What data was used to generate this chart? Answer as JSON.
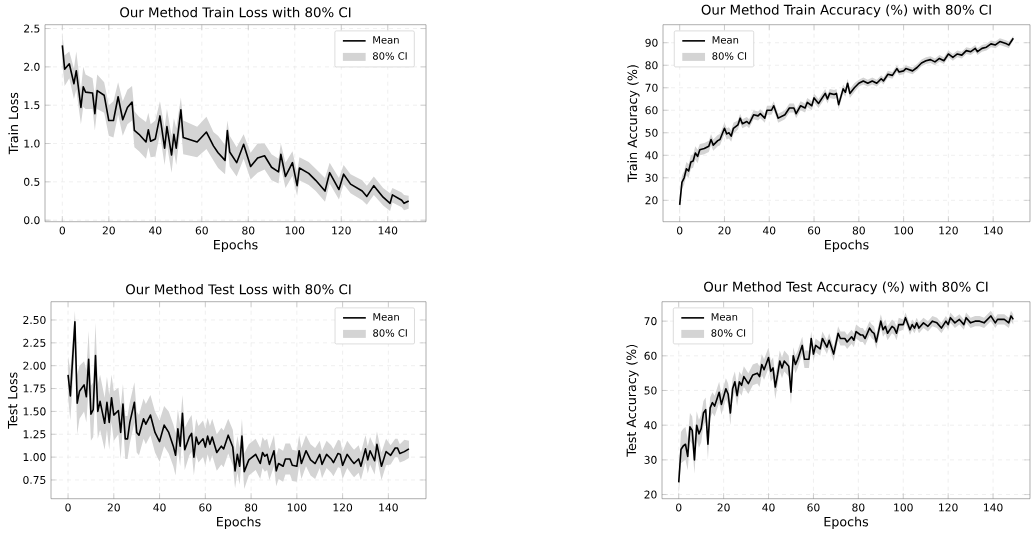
{
  "chart_data": [
    {
      "type": "line",
      "title": "Our Method Train Loss with 80% CI",
      "xlabel": "Epochs",
      "ylabel": "Train Loss",
      "xlim": [
        -7.45,
        156.45
      ],
      "ylim": [
        -0.02,
        2.55
      ],
      "xticks": [
        0,
        20,
        40,
        60,
        80,
        100,
        120,
        140
      ],
      "yticks": [
        {
          "value": 0,
          "label": "0.0"
        },
        0.5,
        {
          "value": 1,
          "label": "1.0"
        },
        1.5,
        {
          "value": 2,
          "label": "2.0"
        },
        2.5
      ],
      "grid": true,
      "legend": "top right",
      "annotations": [
        "80% CI"
      ],
      "x": [
        0,
        1,
        3,
        5,
        6,
        8,
        9,
        10,
        13,
        14,
        15,
        18,
        20,
        22,
        24,
        26,
        28,
        30,
        31,
        33,
        36,
        37,
        38,
        40,
        42,
        44,
        45,
        47,
        48,
        49,
        51,
        52,
        58,
        62,
        65,
        67,
        70,
        71,
        72,
        75,
        78,
        81,
        84,
        87,
        90,
        93,
        94,
        96,
        99,
        101,
        102,
        106,
        109,
        113,
        115,
        119,
        121,
        124,
        129,
        131,
        134,
        138,
        141,
        142,
        146,
        147,
        149
      ],
      "series": [
        {
          "name": "Mean",
          "type": "line",
          "color": "#000000",
          "values": [
            2.28,
            1.97,
            2.04,
            1.78,
            1.95,
            1.47,
            1.74,
            1.67,
            1.66,
            1.39,
            1.69,
            1.63,
            1.3,
            1.3,
            1.61,
            1.31,
            1.47,
            1.54,
            1.17,
            1.12,
            1.02,
            1.18,
            1.03,
            1.06,
            1.36,
            0.94,
            1.22,
            0.85,
            1.12,
            0.94,
            1.44,
            1.08,
            1.02,
            1.15,
            0.97,
            0.88,
            0.78,
            1.17,
            0.89,
            0.75,
            0.99,
            0.7,
            0.81,
            0.84,
            0.69,
            0.63,
            0.86,
            0.57,
            0.75,
            0.45,
            0.68,
            0.61,
            0.52,
            0.38,
            0.62,
            0.4,
            0.6,
            0.47,
            0.38,
            0.31,
            0.45,
            0.3,
            0.22,
            0.33,
            0.26,
            0.22,
            0.25
          ],
          "upper": [
            2.45,
            2.15,
            2.2,
            1.98,
            2.2,
            1.7,
            2.0,
            1.9,
            1.85,
            1.62,
            1.9,
            1.8,
            1.5,
            1.55,
            1.8,
            1.55,
            1.7,
            1.75,
            1.42,
            1.35,
            1.28,
            1.4,
            1.25,
            1.3,
            1.55,
            1.2,
            1.45,
            1.1,
            1.33,
            1.2,
            1.6,
            1.3,
            1.22,
            1.35,
            1.15,
            1.1,
            0.98,
            1.3,
            1.1,
            0.95,
            1.12,
            0.88,
            1.0,
            1.0,
            0.86,
            0.8,
            1.0,
            0.75,
            0.9,
            0.62,
            0.82,
            0.76,
            0.67,
            0.55,
            0.75,
            0.55,
            0.72,
            0.6,
            0.52,
            0.45,
            0.57,
            0.42,
            0.35,
            0.42,
            0.36,
            0.33,
            0.32
          ],
          "lower": [
            2.05,
            1.75,
            1.85,
            1.58,
            1.7,
            1.25,
            1.48,
            1.45,
            1.45,
            1.17,
            1.45,
            1.4,
            1.1,
            1.08,
            1.38,
            1.1,
            1.25,
            1.3,
            0.95,
            0.9,
            0.8,
            0.95,
            0.82,
            0.83,
            1.12,
            0.72,
            0.98,
            0.62,
            0.9,
            0.72,
            1.22,
            0.86,
            0.82,
            0.93,
            0.78,
            0.68,
            0.6,
            0.98,
            0.7,
            0.57,
            0.8,
            0.53,
            0.62,
            0.66,
            0.52,
            0.48,
            0.7,
            0.42,
            0.58,
            0.32,
            0.52,
            0.46,
            0.38,
            0.24,
            0.48,
            0.27,
            0.47,
            0.35,
            0.26,
            0.2,
            0.33,
            0.19,
            0.12,
            0.23,
            0.17,
            0.13,
            0.15
          ]
        }
      ]
    },
    {
      "type": "line",
      "title": "Our Method Train Accuracy (%) with 80% CI",
      "xlabel": "Epochs",
      "ylabel": "Train Accuracy (%)",
      "xlim": [
        -7.45,
        156.45
      ],
      "ylim": [
        10.5,
        98
      ],
      "xticks": [
        0,
        20,
        40,
        60,
        80,
        100,
        120,
        140
      ],
      "yticks": [
        20,
        30,
        40,
        50,
        60,
        70,
        80,
        90
      ],
      "grid": true,
      "legend": "top left",
      "annotations": [
        "80% CI"
      ],
      "x": [
        0,
        1,
        2,
        3,
        4,
        5,
        6,
        7,
        8,
        9,
        11,
        13,
        14,
        15,
        17,
        18,
        20,
        21,
        22,
        23,
        24,
        26,
        27,
        28,
        30,
        31,
        33,
        35,
        36,
        38,
        39,
        41,
        42,
        44,
        47,
        49,
        51,
        52,
        54,
        56,
        57,
        59,
        60,
        62,
        64,
        65,
        66,
        67,
        69,
        70,
        71,
        73,
        74,
        75,
        76,
        78,
        80,
        82,
        84,
        86,
        88,
        90,
        91,
        93,
        95,
        97,
        98,
        100,
        101,
        104,
        106,
        108,
        110,
        112,
        114,
        116,
        118,
        120,
        122,
        124,
        126,
        128,
        130,
        132,
        133,
        135,
        137,
        139,
        141,
        143,
        146,
        147,
        149
      ],
      "series": [
        {
          "name": "Mean",
          "type": "line",
          "color": "#000000",
          "values": [
            18,
            28,
            30,
            34,
            33,
            37,
            37.5,
            41,
            39.5,
            42.5,
            43,
            44,
            47,
            44.5,
            46.5,
            47,
            52,
            49.5,
            50,
            48.5,
            52,
            53.5,
            56.5,
            54,
            55,
            54,
            58,
            57.5,
            58.5,
            56.5,
            60,
            60,
            62,
            56.5,
            58,
            61,
            61,
            58.5,
            62,
            61,
            63.5,
            62,
            65.5,
            63,
            66,
            67.5,
            65,
            67.5,
            67,
            67.5,
            62.5,
            69.5,
            68,
            72,
            67.5,
            70,
            72,
            73,
            72,
            73,
            72,
            74,
            73,
            76,
            75.5,
            78.5,
            77,
            77.5,
            78.5,
            77.5,
            79,
            81,
            82,
            82.5,
            81.5,
            83,
            82,
            85,
            83.5,
            85,
            84.5,
            86.5,
            86,
            87.5,
            86,
            87.5,
            88,
            89.5,
            89,
            90.5,
            89.5,
            89,
            92
          ],
          "upper": [
            21,
            31,
            33,
            37,
            36,
            40,
            40.5,
            44,
            42.5,
            45,
            45.5,
            46.5,
            49.5,
            47,
            49,
            49.5,
            54.5,
            52,
            52.5,
            51,
            54.5,
            55.5,
            58.5,
            56,
            57,
            56,
            60,
            59.5,
            60.5,
            58.5,
            62,
            62,
            64,
            58.5,
            60,
            63,
            63,
            60.5,
            64,
            63,
            65.5,
            64,
            67.5,
            65,
            68,
            69.5,
            67,
            69.5,
            69,
            69.5,
            64.5,
            71.5,
            70,
            74,
            69.5,
            72,
            73.5,
            74.5,
            73.5,
            74.5,
            73.5,
            75.5,
            74.5,
            77.5,
            77,
            80,
            78.5,
            79,
            80,
            79,
            80.5,
            82.5,
            83.5,
            84,
            83,
            84.5,
            83.5,
            86.5,
            85,
            86.5,
            86,
            88,
            87.5,
            89,
            87.5,
            89,
            89.5,
            91,
            90.5,
            92,
            91,
            90.5,
            93
          ],
          "lower": [
            14,
            25,
            27,
            31,
            30,
            34,
            34.5,
            38,
            36.5,
            40,
            40.5,
            41.5,
            44.5,
            42,
            44,
            44.5,
            49.5,
            47,
            47.5,
            46,
            49.5,
            51.5,
            54.5,
            52,
            53,
            52,
            56,
            55.5,
            56.5,
            54.5,
            58,
            58,
            60,
            54.5,
            56,
            59,
            59,
            56.5,
            60,
            59,
            61.5,
            60,
            63.5,
            61,
            64,
            65.5,
            63,
            65.5,
            65,
            65.5,
            60.5,
            67.5,
            66,
            70,
            65.5,
            68,
            70.5,
            71.5,
            70.5,
            71.5,
            70.5,
            72.5,
            71.5,
            74.5,
            74,
            77,
            75.5,
            76,
            77,
            76,
            77.5,
            79.5,
            80.5,
            81,
            80,
            81.5,
            80.5,
            83.5,
            82,
            83.5,
            83,
            85,
            84.5,
            86,
            84.5,
            86,
            86.5,
            88,
            87.5,
            89,
            88,
            87.5,
            91
          ]
        }
      ]
    },
    {
      "type": "line",
      "title": "Our Method Test Loss with 80% CI",
      "xlabel": "Epochs",
      "ylabel": "Test Loss",
      "xlim": [
        -7.45,
        156.45
      ],
      "ylim": [
        0.545,
        2.7
      ],
      "xticks": [
        0,
        20,
        40,
        60,
        80,
        100,
        120,
        140
      ],
      "yticks": [
        {
          "value": 0.75,
          "label": "0.75"
        },
        {
          "value": 1.0,
          "label": "1.00"
        },
        {
          "value": 1.25,
          "label": "1.25"
        },
        {
          "value": 1.5,
          "label": "1.50"
        },
        {
          "value": 1.75,
          "label": "1.75"
        },
        {
          "value": 2.0,
          "label": "2.00"
        },
        {
          "value": 2.25,
          "label": "2.25"
        },
        {
          "value": 2.5,
          "label": "2.50"
        }
      ],
      "grid": true,
      "legend": "top right",
      "annotations": [
        "80% CI"
      ],
      "x": [
        0,
        1,
        3,
        4,
        5,
        7,
        8,
        9,
        10,
        11,
        12,
        13,
        14,
        16,
        17,
        18,
        19,
        20,
        22,
        23,
        24,
        25,
        26,
        27,
        29,
        30,
        31,
        33,
        34,
        36,
        38,
        40,
        42,
        44,
        46,
        47,
        48,
        49,
        50,
        51,
        53,
        54,
        55,
        56,
        57,
        59,
        60,
        61,
        62,
        63,
        65,
        67,
        68,
        70,
        72,
        73,
        74,
        75,
        76,
        77,
        79,
        82,
        84,
        85,
        86,
        87,
        88,
        90,
        91,
        92,
        94,
        95,
        97,
        98,
        100,
        101,
        102,
        104,
        106,
        108,
        110,
        111,
        113,
        115,
        116,
        118,
        119,
        120,
        122,
        124,
        125,
        127,
        128,
        130,
        131,
        132,
        134,
        135,
        137,
        139,
        141,
        143,
        144,
        145,
        147,
        149
      ],
      "series": [
        {
          "name": "Mean",
          "type": "line",
          "color": "#000000",
          "values": [
            1.9,
            1.67,
            2.48,
            1.59,
            1.72,
            1.79,
            1.66,
            2.07,
            1.47,
            1.52,
            2.11,
            1.5,
            1.61,
            1.37,
            1.6,
            1.38,
            1.65,
            1.46,
            1.51,
            1.27,
            1.58,
            1.2,
            1.2,
            1.38,
            1.6,
            1.27,
            1.24,
            1.42,
            1.36,
            1.46,
            1.27,
            1.17,
            1.35,
            1.27,
            1.12,
            1.02,
            1.31,
            1.12,
            1.48,
            1.08,
            1.22,
            1.26,
            1.0,
            1.22,
            1.14,
            1.2,
            1.11,
            1.23,
            1.14,
            1.22,
            1.05,
            1.12,
            1.09,
            1.24,
            1.11,
            0.85,
            1.03,
            0.9,
            1.23,
            0.84,
            0.97,
            1.03,
            0.93,
            1.05,
            1.01,
            1.03,
            0.92,
            1.07,
            0.85,
            0.93,
            0.9,
            0.98,
            0.98,
            0.91,
            0.9,
            1.07,
            0.93,
            1.07,
            0.97,
            0.93,
            1.03,
            0.92,
            1.03,
            0.98,
            0.94,
            1.04,
            1.03,
            0.91,
            1.03,
            0.96,
            0.93,
            0.98,
            0.9,
            1.09,
            0.97,
            1.07,
            0.96,
            1.14,
            0.9,
            1.06,
            1.02,
            1.1,
            1.1,
            1.04,
            1.06,
            1.09
          ],
          "upper": [
            2.1,
            1.95,
            2.6,
            1.9,
            2.0,
            2.05,
            1.95,
            2.38,
            1.78,
            1.82,
            2.47,
            1.8,
            1.9,
            1.65,
            1.88,
            1.68,
            1.9,
            1.72,
            1.76,
            1.55,
            1.8,
            1.45,
            1.45,
            1.6,
            1.82,
            1.5,
            1.46,
            1.64,
            1.58,
            1.68,
            1.5,
            1.4,
            1.56,
            1.5,
            1.36,
            1.26,
            1.52,
            1.36,
            1.68,
            1.32,
            1.42,
            1.46,
            1.22,
            1.42,
            1.34,
            1.4,
            1.31,
            1.43,
            1.34,
            1.42,
            1.25,
            1.32,
            1.29,
            1.42,
            1.3,
            1.05,
            1.23,
            1.1,
            1.42,
            1.04,
            1.14,
            1.2,
            1.1,
            1.22,
            1.18,
            1.2,
            1.09,
            1.24,
            1.02,
            1.1,
            1.07,
            1.15,
            1.15,
            1.08,
            1.07,
            1.24,
            1.1,
            1.24,
            1.14,
            1.1,
            1.18,
            1.07,
            1.18,
            1.13,
            1.09,
            1.19,
            1.18,
            1.06,
            1.18,
            1.11,
            1.08,
            1.13,
            1.05,
            1.24,
            1.12,
            1.22,
            1.11,
            1.28,
            1.05,
            1.2,
            1.13,
            1.2,
            1.2,
            1.14,
            1.19,
            1.18
          ],
          "lower": [
            1.65,
            1.4,
            2.2,
            1.25,
            1.42,
            1.5,
            1.38,
            1.75,
            1.18,
            1.22,
            1.75,
            1.2,
            1.3,
            1.08,
            1.3,
            1.08,
            1.38,
            1.18,
            1.25,
            0.98,
            1.36,
            0.98,
            0.98,
            1.15,
            1.38,
            1.05,
            1.02,
            1.2,
            1.14,
            1.24,
            1.05,
            0.95,
            1.12,
            1.04,
            0.9,
            0.8,
            1.08,
            0.9,
            1.25,
            0.86,
            1.02,
            1.06,
            0.8,
            1.02,
            0.94,
            1.0,
            0.91,
            1.03,
            0.94,
            1.02,
            0.85,
            0.92,
            0.89,
            1.04,
            0.91,
            0.66,
            0.83,
            0.7,
            1.03,
            0.65,
            0.8,
            0.86,
            0.76,
            0.88,
            0.84,
            0.86,
            0.75,
            0.9,
            0.68,
            0.76,
            0.73,
            0.81,
            0.81,
            0.74,
            0.73,
            0.9,
            0.76,
            0.9,
            0.8,
            0.76,
            0.88,
            0.77,
            0.88,
            0.83,
            0.79,
            0.89,
            0.88,
            0.76,
            0.88,
            0.81,
            0.78,
            0.83,
            0.75,
            0.94,
            0.82,
            0.92,
            0.81,
            0.99,
            0.75,
            0.91,
            0.92,
            1.0,
            1.0,
            0.94,
            0.96,
            0.99
          ]
        }
      ]
    },
    {
      "type": "line",
      "title": "Our Method Test Accuracy (%) with 80% CI",
      "xlabel": "Epochs",
      "ylabel": "Test Accuracy (%)",
      "xlim": [
        -7.45,
        156.45
      ],
      "ylim": [
        18.8,
        75.6
      ],
      "xticks": [
        0,
        20,
        40,
        60,
        80,
        100,
        120,
        140
      ],
      "yticks": [
        20,
        30,
        40,
        50,
        60,
        70
      ],
      "grid": true,
      "legend": "top left",
      "annotations": [
        "80% CI"
      ],
      "x": [
        0,
        1,
        2,
        3,
        4,
        5,
        6,
        7,
        8,
        9,
        10,
        11,
        12,
        13,
        14,
        15,
        16,
        18,
        19,
        21,
        22,
        23,
        24,
        25,
        26,
        27,
        28,
        29,
        31,
        33,
        35,
        36,
        37,
        38,
        40,
        41,
        42,
        43,
        44,
        45,
        46,
        47,
        49,
        50,
        51,
        52,
        53,
        55,
        56,
        58,
        59,
        60,
        61,
        63,
        64,
        66,
        67,
        69,
        71,
        72,
        74,
        75,
        77,
        78,
        79,
        81,
        82,
        83,
        85,
        86,
        87,
        88,
        90,
        91,
        92,
        93,
        95,
        96,
        97,
        98,
        100,
        101,
        103,
        104,
        105,
        106,
        107,
        109,
        111,
        113,
        115,
        117,
        119,
        120,
        121,
        123,
        125,
        127,
        128,
        130,
        132,
        134,
        136,
        139,
        141,
        142,
        145,
        147,
        148,
        149
      ],
      "series": [
        {
          "name": "Mean",
          "type": "line",
          "color": "#000000",
          "values": [
            23.5,
            33,
            34,
            34.5,
            31,
            39.5,
            38.5,
            30,
            40,
            37.5,
            39,
            43.5,
            44.5,
            34.5,
            45,
            46.5,
            45.5,
            49.5,
            46,
            50.5,
            49,
            43.5,
            50.5,
            52.5,
            48.5,
            52.5,
            51.5,
            54,
            52,
            54.5,
            55,
            54,
            57.5,
            56,
            59.5,
            55.5,
            56.5,
            51,
            54.5,
            58.5,
            56.5,
            58.5,
            57,
            49.5,
            60,
            57.5,
            59,
            63,
            59,
            59,
            65,
            60.5,
            63,
            62,
            65,
            62.5,
            64.5,
            60.5,
            66.5,
            65,
            65,
            64,
            65.5,
            64.5,
            67,
            66,
            66,
            65,
            68,
            67,
            66.5,
            64,
            70,
            67.5,
            68.5,
            66.5,
            68.5,
            68,
            66.5,
            69,
            69,
            71,
            67.5,
            69,
            68,
            69.5,
            68,
            69.5,
            68.5,
            70,
            69.5,
            68,
            70,
            69,
            71,
            69.5,
            70.5,
            69,
            71,
            69.5,
            70,
            70,
            69.5,
            71.5,
            69.5,
            70.5,
            70.5,
            69.5,
            71.5,
            70.5
          ],
          "upper": [
            26,
            38,
            39,
            39.5,
            36,
            43.5,
            42.5,
            35.5,
            44,
            41.5,
            43,
            47,
            48,
            39,
            48,
            49.5,
            48.5,
            52.5,
            49,
            53.5,
            52,
            47,
            53.5,
            55.5,
            51.5,
            55.5,
            54.5,
            57,
            55,
            57.5,
            58,
            57,
            60.5,
            59,
            62.5,
            58.5,
            59.5,
            54.5,
            57.5,
            61.5,
            59.5,
            61.5,
            60,
            53,
            62.5,
            60,
            61.5,
            65.5,
            61.5,
            61.5,
            67,
            62.5,
            65,
            64,
            67,
            64.5,
            66.5,
            62.5,
            68.5,
            67,
            67,
            66,
            67.5,
            66.5,
            69,
            68,
            68,
            67,
            70,
            69,
            68.5,
            66,
            72,
            69.5,
            70.5,
            68.5,
            70.5,
            70,
            68.5,
            71,
            70.5,
            72.5,
            69,
            70.5,
            69.5,
            71,
            69.5,
            71,
            70,
            71.5,
            71,
            69.5,
            71.5,
            70.5,
            72.5,
            71,
            72,
            70.5,
            72.5,
            71,
            71.5,
            71.5,
            71,
            73,
            71,
            72,
            72,
            71,
            73,
            72
          ],
          "lower": [
            20,
            29,
            29.5,
            30,
            27,
            35.5,
            34.5,
            26,
            36,
            33.5,
            35,
            40,
            41,
            30,
            42,
            43.5,
            42.5,
            46.5,
            43,
            47.5,
            46,
            40,
            47.5,
            49.5,
            45.5,
            49.5,
            48.5,
            51,
            49,
            51.5,
            52,
            51,
            54.5,
            53,
            56.5,
            52.5,
            53.5,
            47.5,
            51.5,
            55.5,
            53.5,
            55.5,
            54,
            46,
            57.5,
            55,
            56.5,
            60.5,
            56.5,
            56.5,
            63,
            58.5,
            61,
            60,
            63,
            60.5,
            62.5,
            58.5,
            64.5,
            63,
            63,
            62,
            63.5,
            62.5,
            65,
            64,
            64,
            63,
            66,
            65,
            64.5,
            62,
            68,
            65.5,
            66.5,
            64.5,
            66.5,
            66,
            64.5,
            67,
            67.5,
            69.5,
            66,
            67.5,
            66.5,
            68,
            66.5,
            68,
            67,
            68.5,
            68,
            66.5,
            68.5,
            67.5,
            69.5,
            68,
            69,
            67.5,
            69.5,
            68,
            68.5,
            68.5,
            68,
            70,
            68,
            69,
            69,
            68,
            70,
            69
          ]
        }
      ]
    }
  ]
}
